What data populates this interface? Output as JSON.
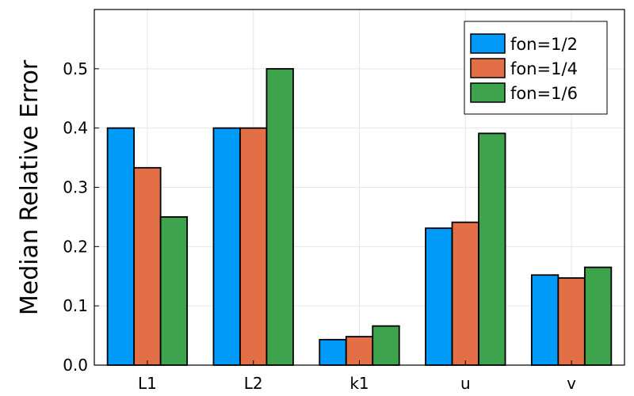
{
  "chart_data": {
    "type": "bar",
    "title": "",
    "xlabel": "",
    "ylabel": "Median Relative Error",
    "categories": [
      "L1",
      "L2",
      "k1",
      "u",
      "v"
    ],
    "series": [
      {
        "name": "fon=1/2",
        "color": "#009af9",
        "values": [
          0.4,
          0.4,
          0.043,
          0.231,
          0.152
        ]
      },
      {
        "name": "fon=1/4",
        "color": "#e26f46",
        "values": [
          0.333,
          0.4,
          0.048,
          0.241,
          0.147
        ]
      },
      {
        "name": "fon=1/6",
        "color": "#3da44d",
        "values": [
          0.25,
          0.5,
          0.066,
          0.391,
          0.165
        ]
      }
    ],
    "ylim": [
      0,
      0.6
    ],
    "yticks": [
      0.0,
      0.1,
      0.2,
      0.3,
      0.4,
      0.5
    ],
    "ytick_labels": [
      "0.0",
      "0.1",
      "0.2",
      "0.3",
      "0.4",
      "0.5"
    ],
    "grid": true,
    "legend_position": "top-right"
  }
}
